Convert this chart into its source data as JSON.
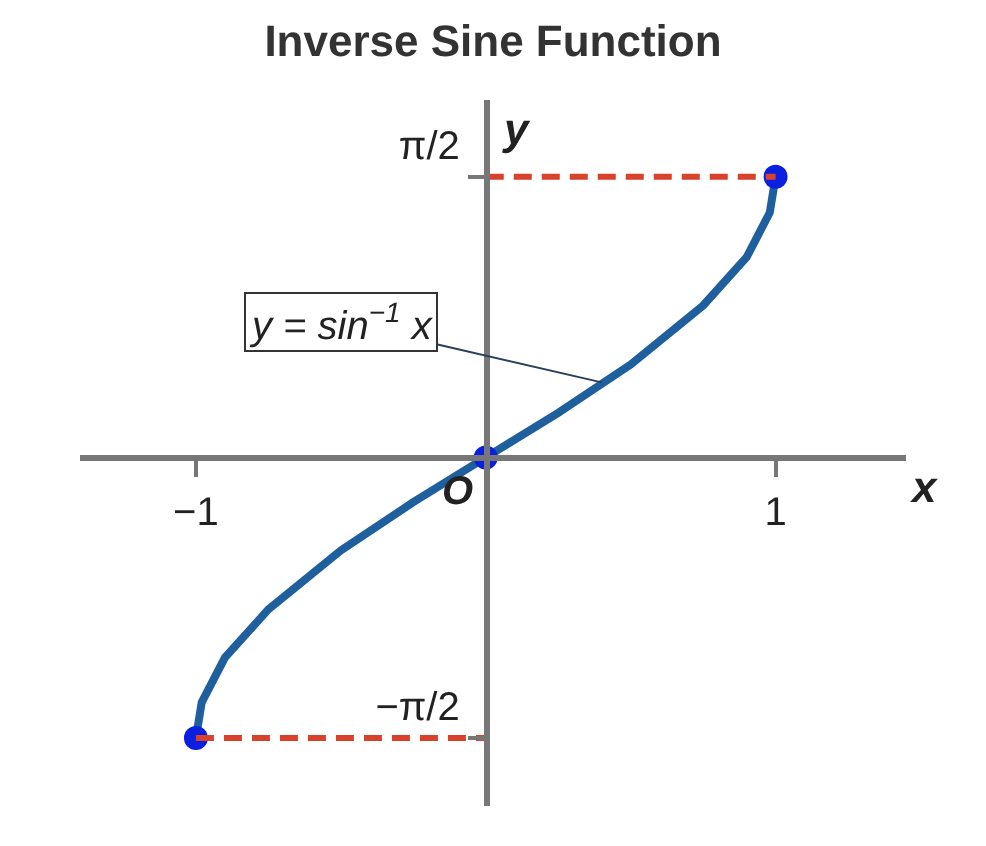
{
  "chart_data": {
    "type": "line",
    "title": "Inverse Sine Function",
    "xlabel": "x",
    "ylabel": "y",
    "xlim": [
      -1.4,
      1.45
    ],
    "ylim": [
      -1.95,
      2.0
    ],
    "xticks": [
      {
        "value": -1,
        "label": "−1"
      },
      1
    ],
    "yticks": [
      {
        "value": -1.57,
        "label": "−π/2"
      },
      {
        "value": 1.57,
        "label": "π/2"
      }
    ],
    "series": [
      {
        "color": "#1f5f9e",
        "x": [
          -1,
          -0.98,
          -0.9,
          -0.75,
          -0.5,
          -0.25,
          0,
          0.25,
          0.5,
          0.75,
          0.9,
          0.98,
          1
        ],
        "values": [
          -1.57,
          -1.37,
          -1.12,
          -0.85,
          -0.52,
          -0.25,
          0,
          0.25,
          0.52,
          0.85,
          1.12,
          1.37,
          1.57
        ],
        "line_style": "solid",
        "marker": "none"
      },
      {
        "type": "scatter",
        "color": "#0a1fe0",
        "x": [
          -1,
          0,
          1
        ],
        "values": [
          -1.57,
          0,
          1.57
        ],
        "marker": "circle"
      },
      {
        "color": "#d9412b",
        "x": [
          0,
          1
        ],
        "values": [
          1.57,
          1.57
        ],
        "line_style": "dashed",
        "marker": "none"
      },
      {
        "color": "#d9412b",
        "x": [
          -1,
          0
        ],
        "values": [
          -1.57,
          -1.57
        ],
        "line_style": "dashed",
        "marker": "none"
      }
    ],
    "annotations": [
      {
        "text": "y = sin$^{−1}$ x",
        "x": 0.4,
        "y": 0.42
      },
      "O"
    ]
  }
}
